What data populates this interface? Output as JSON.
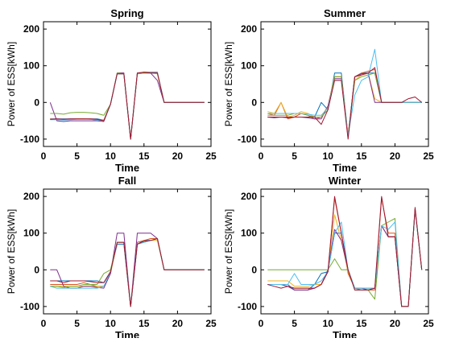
{
  "colors": {
    "s1": "#0072BD",
    "s2": "#D95319",
    "s3": "#EDB120",
    "s4": "#7E2F8E",
    "s5": "#77AC30",
    "s6": "#4DBEEE",
    "s7": "#A2142F"
  },
  "chart_data": [
    {
      "type": "line",
      "title": "Spring",
      "xlabel": "Time",
      "ylabel": "Power of ESS[kWh]",
      "xlim": [
        0,
        25
      ],
      "ylim": [
        -120,
        220
      ],
      "xticks": [
        "0",
        "5",
        "10",
        "15",
        "20",
        "25"
      ],
      "yticks": [
        "-100",
        "0",
        "100",
        "200"
      ],
      "x": [
        1,
        2,
        3,
        4,
        5,
        6,
        7,
        8,
        9,
        10,
        11,
        12,
        13,
        14,
        15,
        16,
        17,
        18,
        19,
        20,
        21,
        22,
        23,
        24
      ],
      "series": [
        {
          "values": [
            -45,
            -45,
            -45,
            -45,
            -45,
            -45,
            -45,
            -45,
            -48,
            -5,
            78,
            78,
            -100,
            78,
            82,
            82,
            80,
            0,
            0,
            0,
            0,
            0,
            0,
            0
          ]
        },
        {
          "values": [
            -45,
            -47,
            -47,
            -46,
            -45,
            -45,
            -46,
            -48,
            -50,
            -5,
            80,
            80,
            -100,
            80,
            83,
            83,
            83,
            0,
            0,
            0,
            0,
            0,
            0,
            0
          ]
        },
        {
          "values": [
            -46,
            -47,
            -47,
            -46,
            -45,
            -45,
            -45,
            -47,
            -48,
            -5,
            78,
            78,
            -100,
            78,
            80,
            80,
            78,
            0,
            0,
            0,
            0,
            0,
            0,
            0
          ]
        },
        {
          "values": [
            0,
            -50,
            -52,
            -50,
            -50,
            -50,
            -50,
            -50,
            -52,
            -5,
            80,
            80,
            -100,
            78,
            80,
            80,
            60,
            0,
            0,
            0,
            0,
            0,
            0,
            0
          ]
        },
        {
          "values": [
            -30,
            -30,
            -32,
            -28,
            -27,
            -27,
            -28,
            -30,
            -35,
            -5,
            80,
            78,
            -100,
            78,
            80,
            80,
            80,
            0,
            0,
            0,
            0,
            0,
            0,
            0
          ]
        },
        {
          "values": [
            -47,
            -47,
            -48,
            -47,
            -46,
            -46,
            -46,
            -48,
            -50,
            -5,
            78,
            78,
            -100,
            80,
            82,
            82,
            82,
            0,
            0,
            0,
            0,
            0,
            0,
            0
          ]
        },
        {
          "values": [
            -46,
            -45,
            -46,
            -45,
            -45,
            -45,
            -45,
            -46,
            -50,
            -5,
            78,
            78,
            -100,
            80,
            82,
            80,
            80,
            0,
            0,
            0,
            0,
            0,
            0,
            0
          ]
        }
      ]
    },
    {
      "type": "line",
      "title": "Summer",
      "xlabel": "Time",
      "ylabel": "Power of ESS[kWh]",
      "xlim": [
        0,
        25
      ],
      "ylim": [
        -120,
        220
      ],
      "xticks": [
        "0",
        "5",
        "10",
        "15",
        "20",
        "25"
      ],
      "yticks": [
        "-100",
        "0",
        "100",
        "200"
      ],
      "x": [
        1,
        2,
        3,
        4,
        5,
        6,
        7,
        8,
        9,
        10,
        11,
        12,
        13,
        14,
        15,
        16,
        17,
        18,
        19,
        20,
        21,
        22,
        23,
        24
      ],
      "series": [
        {
          "values": [
            -40,
            -40,
            -40,
            -40,
            -40,
            -40,
            -40,
            -40,
            0,
            -20,
            80,
            80,
            -90,
            70,
            80,
            80,
            80,
            0,
            0,
            0,
            0,
            0,
            0,
            0
          ]
        },
        {
          "values": [
            -30,
            -35,
            0,
            -45,
            -40,
            -30,
            -35,
            -45,
            -40,
            -10,
            70,
            70,
            -95,
            70,
            80,
            85,
            90,
            0,
            0,
            0,
            0,
            0,
            0,
            0
          ]
        },
        {
          "values": [
            -25,
            -30,
            0,
            -40,
            -35,
            -25,
            -30,
            -40,
            -40,
            -10,
            70,
            70,
            -90,
            60,
            75,
            80,
            10,
            0,
            0,
            0,
            0,
            0,
            0,
            0
          ]
        },
        {
          "values": [
            -40,
            -42,
            -40,
            -42,
            -40,
            -40,
            -42,
            -45,
            -45,
            -10,
            65,
            65,
            -95,
            70,
            78,
            80,
            0,
            0,
            0,
            0,
            0,
            0,
            0,
            0
          ]
        },
        {
          "values": [
            -35,
            -35,
            -35,
            -35,
            -30,
            -30,
            -35,
            -40,
            -40,
            -20,
            70,
            70,
            -90,
            60,
            70,
            75,
            80,
            0,
            0,
            0,
            0,
            0,
            0,
            0
          ]
        },
        {
          "values": [
            -30,
            -30,
            -30,
            -30,
            -30,
            -30,
            -32,
            -35,
            -35,
            -15,
            60,
            60,
            -90,
            20,
            60,
            70,
            145,
            0,
            0,
            0,
            0,
            0,
            0,
            0
          ]
        },
        {
          "values": [
            -40,
            -40,
            -40,
            -40,
            -40,
            -40,
            -40,
            -40,
            -60,
            -20,
            60,
            60,
            -100,
            70,
            75,
            80,
            95,
            0,
            0,
            0,
            0,
            10,
            15,
            0
          ]
        }
      ]
    },
    {
      "type": "line",
      "title": "Fall",
      "xlabel": "Time",
      "ylabel": "Power of ESS[kWh]",
      "xlim": [
        0,
        25
      ],
      "ylim": [
        -120,
        220
      ],
      "xticks": [
        "0",
        "5",
        "10",
        "15",
        "20",
        "25"
      ],
      "yticks": [
        "-100",
        "0",
        "100",
        "200"
      ],
      "x": [
        1,
        2,
        3,
        4,
        5,
        6,
        7,
        8,
        9,
        10,
        11,
        12,
        13,
        14,
        15,
        16,
        17,
        18,
        19,
        20,
        21,
        22,
        23,
        24
      ],
      "series": [
        {
          "values": [
            -30,
            -30,
            -30,
            -30,
            -30,
            -30,
            -30,
            -30,
            -35,
            -5,
            70,
            70,
            -100,
            70,
            80,
            80,
            85,
            0,
            0,
            0,
            0,
            0,
            0,
            0
          ]
        },
        {
          "values": [
            -40,
            -40,
            -40,
            -40,
            -40,
            -35,
            -40,
            -45,
            -45,
            -10,
            75,
            75,
            -100,
            75,
            80,
            85,
            85,
            0,
            0,
            0,
            0,
            0,
            0,
            0
          ]
        },
        {
          "values": [
            -45,
            -45,
            -45,
            -45,
            -45,
            -45,
            -45,
            -45,
            -45,
            -10,
            75,
            75,
            -100,
            70,
            75,
            80,
            80,
            0,
            0,
            0,
            0,
            0,
            0,
            0
          ]
        },
        {
          "values": [
            0,
            0,
            -45,
            -50,
            -50,
            -45,
            -45,
            -48,
            -50,
            -10,
            100,
            100,
            -100,
            100,
            100,
            100,
            85,
            0,
            0,
            0,
            0,
            0,
            0,
            0
          ]
        },
        {
          "values": [
            -45,
            -45,
            -48,
            -45,
            -45,
            -40,
            -40,
            -40,
            -10,
            0,
            75,
            75,
            -100,
            70,
            75,
            80,
            85,
            0,
            0,
            0,
            0,
            0,
            0,
            0
          ]
        },
        {
          "values": [
            -45,
            -50,
            -50,
            -50,
            -50,
            -50,
            -50,
            -50,
            -45,
            -5,
            75,
            75,
            -100,
            70,
            75,
            80,
            85,
            0,
            0,
            0,
            0,
            0,
            0,
            0
          ]
        },
        {
          "values": [
            -30,
            -30,
            -35,
            -30,
            -30,
            -30,
            -32,
            -35,
            -35,
            -5,
            75,
            75,
            -100,
            70,
            78,
            80,
            85,
            0,
            0,
            0,
            0,
            0,
            0,
            0
          ]
        }
      ]
    },
    {
      "type": "line",
      "title": "Winter",
      "xlabel": "Time",
      "ylabel": "Power of ESS[kWh]",
      "xlim": [
        0,
        25
      ],
      "ylim": [
        -120,
        220
      ],
      "xticks": [
        "0",
        "5",
        "10",
        "15",
        "20",
        "25"
      ],
      "yticks": [
        "-100",
        "0",
        "100",
        "200"
      ],
      "x": [
        1,
        2,
        3,
        4,
        5,
        6,
        7,
        8,
        9,
        10,
        11,
        12,
        13,
        14,
        15,
        16,
        17,
        18,
        19,
        20,
        21,
        22,
        23,
        24
      ],
      "series": [
        {
          "values": [
            -40,
            -40,
            -40,
            -40,
            -55,
            -55,
            -55,
            -40,
            -10,
            -5,
            100,
            100,
            0,
            -50,
            -50,
            -50,
            -50,
            120,
            90,
            90,
            -100,
            -100,
            165,
            0
          ]
        },
        {
          "values": [
            -40,
            -40,
            -40,
            -45,
            -50,
            -50,
            -50,
            -50,
            -40,
            -5,
            195,
            100,
            -10,
            -50,
            -55,
            -55,
            -55,
            195,
            100,
            100,
            -100,
            -100,
            165,
            0
          ]
        },
        {
          "values": [
            -30,
            -30,
            -30,
            -30,
            -45,
            -45,
            -45,
            -40,
            -40,
            -5,
            150,
            80,
            -5,
            -50,
            -50,
            -50,
            -50,
            120,
            90,
            90,
            -100,
            -100,
            165,
            0
          ]
        },
        {
          "values": [
            -40,
            -40,
            -40,
            -45,
            -55,
            -55,
            -55,
            -50,
            -40,
            0,
            110,
            80,
            0,
            -50,
            -50,
            -55,
            -50,
            120,
            90,
            90,
            -100,
            -100,
            165,
            0
          ]
        },
        {
          "values": [
            0,
            0,
            0,
            0,
            0,
            0,
            0,
            0,
            0,
            0,
            30,
            0,
            0,
            -55,
            -55,
            -55,
            -80,
            120,
            130,
            140,
            -100,
            -100,
            165,
            0
          ]
        },
        {
          "values": [
            -40,
            -40,
            -40,
            -40,
            -10,
            -40,
            -40,
            -40,
            -30,
            -5,
            100,
            130,
            0,
            -50,
            -50,
            -50,
            -50,
            120,
            110,
            130,
            -100,
            -100,
            165,
            0
          ]
        },
        {
          "values": [
            -40,
            -45,
            -50,
            -45,
            -50,
            -50,
            -50,
            -50,
            -40,
            -5,
            200,
            100,
            0,
            -55,
            -55,
            -55,
            -50,
            200,
            90,
            90,
            -100,
            -100,
            170,
            0
          ]
        }
      ]
    }
  ]
}
